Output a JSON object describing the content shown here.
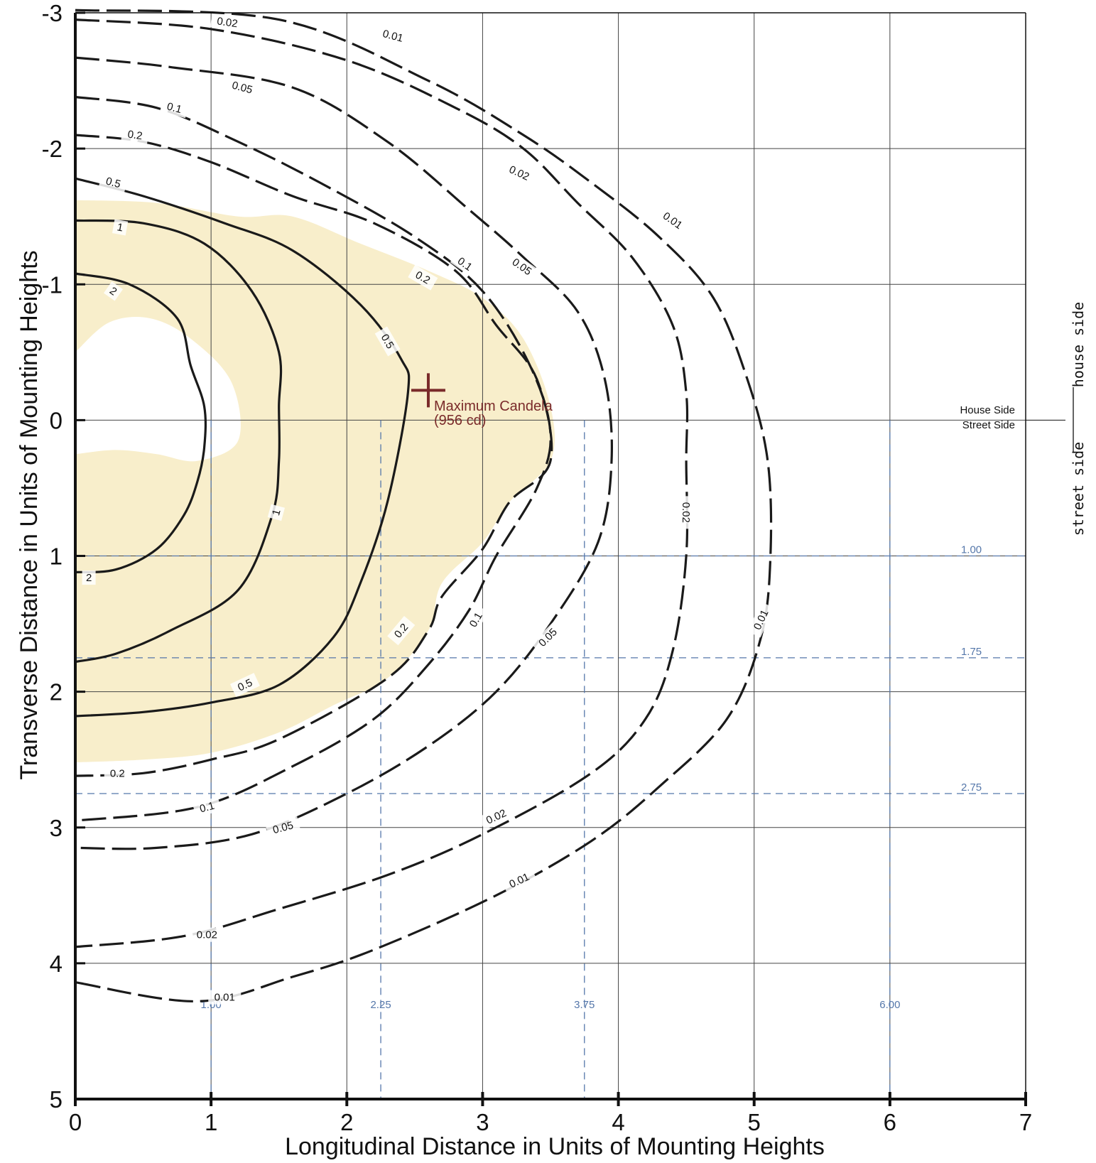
{
  "chart_data": {
    "type": "contour",
    "xlabel": "Longitudinal Distance in Units of Mounting Heights",
    "ylabel": "Transverse Distance in Units of Mounting Heights",
    "xlim": [
      0,
      7
    ],
    "ylim": [
      -3,
      5
    ],
    "y_axis_direction": "increasing downward",
    "x_ticks": [
      "0",
      "1",
      "2",
      "3",
      "4",
      "5",
      "6",
      "7"
    ],
    "y_ticks": [
      "-3",
      "-2",
      "-1",
      "0",
      "1",
      "2",
      "3",
      "4",
      "5"
    ],
    "grid": true,
    "side_labels": {
      "house_line": "House Side",
      "street_line": "Street Side",
      "house_vertical": "house side",
      "street_vertical": "street side"
    },
    "max_candela": {
      "x": 2.6,
      "y": -0.22,
      "label": "Maximum Candela",
      "value_label": "(956 cd)",
      "color": "#7a2a2a"
    },
    "reference_lines": {
      "color": "#5577aa",
      "vertical": [
        {
          "x": 1.0,
          "label": "1.00"
        },
        {
          "x": 2.25,
          "label": "2.25"
        },
        {
          "x": 3.75,
          "label": "3.75"
        },
        {
          "x": 6.0,
          "label": "6.00"
        }
      ],
      "horizontal": [
        {
          "y": 1.0,
          "label": "1.00"
        },
        {
          "y": 1.75,
          "label": "1.75"
        },
        {
          "y": 2.75,
          "label": "2.75"
        }
      ]
    },
    "half_max_region": {
      "color": "#f8eecb",
      "outer": [
        [
          0,
          -1.62
        ],
        [
          0.6,
          -1.6
        ],
        [
          1.2,
          -1.5
        ],
        [
          1.6,
          -1.5
        ],
        [
          2.1,
          -1.3
        ],
        [
          2.6,
          -1.1
        ],
        [
          3.0,
          -0.9
        ],
        [
          3.3,
          -0.6
        ],
        [
          3.5,
          -0.1
        ],
        [
          3.5,
          0.3
        ],
        [
          3.2,
          0.6
        ],
        [
          3.0,
          0.9
        ],
        [
          2.7,
          1.2
        ],
        [
          2.6,
          1.55
        ],
        [
          2.3,
          1.9
        ],
        [
          1.9,
          2.1
        ],
        [
          1.5,
          2.3
        ],
        [
          1.0,
          2.45
        ],
        [
          0.5,
          2.5
        ],
        [
          0,
          2.52
        ]
      ],
      "hole": [
        [
          0,
          -0.5
        ],
        [
          0.25,
          -0.72
        ],
        [
          0.55,
          -0.75
        ],
        [
          0.85,
          -0.6
        ],
        [
          1.15,
          -0.28
        ],
        [
          1.2,
          0.15
        ],
        [
          0.9,
          0.3
        ],
        [
          0.6,
          0.25
        ],
        [
          0.3,
          0.22
        ],
        [
          0,
          0.25
        ]
      ]
    },
    "contours": [
      {
        "level": "2",
        "dashed": false,
        "points": [
          [
            0,
            -1.08
          ],
          [
            0.4,
            -1.0
          ],
          [
            0.75,
            -0.75
          ],
          [
            0.85,
            -0.4
          ],
          [
            0.95,
            -0.1
          ],
          [
            0.95,
            0.2
          ],
          [
            0.9,
            0.45
          ],
          [
            0.8,
            0.7
          ],
          [
            0.6,
            0.95
          ],
          [
            0.3,
            1.1
          ],
          [
            0,
            1.12
          ]
        ],
        "labels": [
          {
            "x": 0.28,
            "y": -0.95,
            "text": "2",
            "angle": 35
          },
          {
            "x": 0.1,
            "y": 1.16,
            "text": "2",
            "angle": 0
          }
        ]
      },
      {
        "level": "1",
        "dashed": false,
        "points": [
          [
            0,
            -1.47
          ],
          [
            0.5,
            -1.45
          ],
          [
            0.95,
            -1.3
          ],
          [
            1.3,
            -0.95
          ],
          [
            1.5,
            -0.5
          ],
          [
            1.5,
            -0.1
          ],
          [
            1.5,
            0.3
          ],
          [
            1.45,
            0.7
          ],
          [
            1.2,
            1.25
          ],
          [
            0.7,
            1.55
          ],
          [
            0.3,
            1.72
          ],
          [
            0,
            1.78
          ]
        ],
        "labels": [
          {
            "x": 0.33,
            "y": -1.42,
            "text": "1",
            "angle": 10
          },
          {
            "x": 1.48,
            "y": 0.68,
            "text": "1",
            "angle": -75
          }
        ]
      },
      {
        "level": "0.5",
        "dashed": false,
        "points": [
          [
            0,
            -1.78
          ],
          [
            0.5,
            -1.65
          ],
          [
            1.1,
            -1.45
          ],
          [
            1.6,
            -1.25
          ],
          [
            2.1,
            -0.85
          ],
          [
            2.4,
            -0.45
          ],
          [
            2.45,
            -0.2
          ],
          [
            2.3,
            0.6
          ],
          [
            2.1,
            1.2
          ],
          [
            1.9,
            1.6
          ],
          [
            1.5,
            1.95
          ],
          [
            1.0,
            2.08
          ],
          [
            0.5,
            2.15
          ],
          [
            0,
            2.18
          ]
        ],
        "labels": [
          {
            "x": 0.28,
            "y": -1.75,
            "text": "0.5",
            "angle": 15
          },
          {
            "x": 2.3,
            "y": -0.58,
            "text": "0.5",
            "angle": 60
          },
          {
            "x": 1.25,
            "y": 1.95,
            "text": "0.5",
            "angle": -25
          }
        ]
      },
      {
        "level": "0.2",
        "dashed": true,
        "points": [
          [
            0,
            -2.1
          ],
          [
            0.5,
            -2.05
          ],
          [
            1.0,
            -1.9
          ],
          [
            1.6,
            -1.65
          ],
          [
            2.2,
            -1.45
          ],
          [
            2.8,
            -1.1
          ],
          [
            3.1,
            -0.7
          ],
          [
            3.4,
            -0.3
          ],
          [
            3.5,
            0.3
          ],
          [
            3.2,
            0.6
          ],
          [
            3.0,
            0.95
          ],
          [
            2.7,
            1.3
          ],
          [
            2.6,
            1.55
          ],
          [
            2.3,
            1.9
          ],
          [
            1.5,
            2.35
          ],
          [
            1.0,
            2.5
          ],
          [
            0.5,
            2.6
          ],
          [
            0,
            2.62
          ]
        ],
        "labels": [
          {
            "x": 0.44,
            "y": -2.1,
            "text": "0.2",
            "angle": 8
          },
          {
            "x": 2.56,
            "y": -1.05,
            "text": "0.2",
            "angle": 30
          },
          {
            "x": 2.4,
            "y": 1.55,
            "text": "0.2",
            "angle": -50
          },
          {
            "x": 0.31,
            "y": 2.6,
            "text": "0.2",
            "angle": 0
          }
        ]
      },
      {
        "level": "0.1",
        "dashed": true,
        "points": [
          [
            0,
            -2.38
          ],
          [
            0.6,
            -2.3
          ],
          [
            1.2,
            -2.05
          ],
          [
            1.8,
            -1.75
          ],
          [
            2.5,
            -1.35
          ],
          [
            3.0,
            -0.95
          ],
          [
            3.35,
            -0.4
          ],
          [
            3.5,
            0.1
          ],
          [
            3.4,
            0.5
          ],
          [
            3.1,
            1.0
          ],
          [
            2.9,
            1.4
          ],
          [
            2.6,
            1.8
          ],
          [
            2.2,
            2.2
          ],
          [
            1.6,
            2.55
          ],
          [
            0.9,
            2.85
          ],
          [
            0,
            2.95
          ]
        ],
        "labels": [
          {
            "x": 0.73,
            "y": -2.3,
            "text": "0.1",
            "angle": 15
          },
          {
            "x": 2.87,
            "y": -1.15,
            "text": "0.1",
            "angle": 35
          },
          {
            "x": 2.95,
            "y": 1.47,
            "text": "0.1",
            "angle": -60
          },
          {
            "x": 0.97,
            "y": 2.85,
            "text": "0.1",
            "angle": -15
          }
        ]
      },
      {
        "level": "0.05",
        "dashed": true,
        "points": [
          [
            0,
            -2.67
          ],
          [
            0.7,
            -2.6
          ],
          [
            1.6,
            -2.45
          ],
          [
            2.3,
            -2.05
          ],
          [
            2.9,
            -1.55
          ],
          [
            3.3,
            -1.2
          ],
          [
            3.7,
            -0.8
          ],
          [
            3.9,
            -0.3
          ],
          [
            3.95,
            0.3
          ],
          [
            3.85,
            0.9
          ],
          [
            3.5,
            1.5
          ],
          [
            3.1,
            2.0
          ],
          [
            2.6,
            2.4
          ],
          [
            2.0,
            2.75
          ],
          [
            1.3,
            3.05
          ],
          [
            0.6,
            3.15
          ],
          [
            0,
            3.15
          ]
        ],
        "labels": [
          {
            "x": 1.23,
            "y": -2.45,
            "text": "0.05",
            "angle": 15
          },
          {
            "x": 3.29,
            "y": -1.13,
            "text": "0.05",
            "angle": 35
          },
          {
            "x": 3.48,
            "y": 1.6,
            "text": "0.05",
            "angle": -45
          },
          {
            "x": 1.53,
            "y": 3.0,
            "text": "0.05",
            "angle": -15
          }
        ]
      },
      {
        "level": "0.02",
        "dashed": true,
        "points": [
          [
            0,
            -2.95
          ],
          [
            1.0,
            -2.88
          ],
          [
            2.0,
            -2.65
          ],
          [
            2.8,
            -2.3
          ],
          [
            3.3,
            -2.0
          ],
          [
            3.7,
            -1.6
          ],
          [
            4.1,
            -1.2
          ],
          [
            4.4,
            -0.7
          ],
          [
            4.5,
            -0.2
          ],
          [
            4.5,
            0.3
          ],
          [
            4.5,
            1.0
          ],
          [
            4.4,
            1.7
          ],
          [
            4.2,
            2.2
          ],
          [
            3.8,
            2.6
          ],
          [
            3.0,
            3.05
          ],
          [
            2.3,
            3.35
          ],
          [
            1.5,
            3.6
          ],
          [
            0.8,
            3.8
          ],
          [
            0,
            3.88
          ]
        ],
        "labels": [
          {
            "x": 1.12,
            "y": -2.93,
            "text": "0.02",
            "angle": 8
          },
          {
            "x": 3.27,
            "y": -1.82,
            "text": "0.02",
            "angle": 25
          },
          {
            "x": 4.5,
            "y": 0.68,
            "text": "0.02",
            "angle": 90
          },
          {
            "x": 3.1,
            "y": 2.92,
            "text": "0.02",
            "angle": -25
          },
          {
            "x": 0.97,
            "y": 3.79,
            "text": "0.02",
            "angle": 0
          }
        ]
      },
      {
        "level": "0.01",
        "dashed": true,
        "points": [
          [
            0,
            -3.02
          ],
          [
            1.5,
            -2.95
          ],
          [
            2.6,
            -2.5
          ],
          [
            3.3,
            -2.1
          ],
          [
            3.8,
            -1.75
          ],
          [
            4.3,
            -1.35
          ],
          [
            4.7,
            -0.9
          ],
          [
            4.95,
            -0.3
          ],
          [
            5.1,
            0.3
          ],
          [
            5.12,
            1.0
          ],
          [
            5.05,
            1.6
          ],
          [
            4.8,
            2.2
          ],
          [
            4.3,
            2.7
          ],
          [
            3.8,
            3.1
          ],
          [
            3.1,
            3.5
          ],
          [
            2.2,
            3.9
          ],
          [
            1.6,
            4.1
          ],
          [
            0.9,
            4.28
          ],
          [
            0,
            4.14
          ]
        ],
        "labels": [
          {
            "x": 2.34,
            "y": -2.83,
            "text": "0.01",
            "angle": 15
          },
          {
            "x": 4.4,
            "y": -1.47,
            "text": "0.01",
            "angle": 35
          },
          {
            "x": 5.05,
            "y": 1.47,
            "text": "0.01",
            "angle": -65
          },
          {
            "x": 3.27,
            "y": 3.39,
            "text": "0.01",
            "angle": -25
          },
          {
            "x": 1.1,
            "y": 4.25,
            "text": "0.01",
            "angle": 0
          }
        ]
      }
    ]
  }
}
